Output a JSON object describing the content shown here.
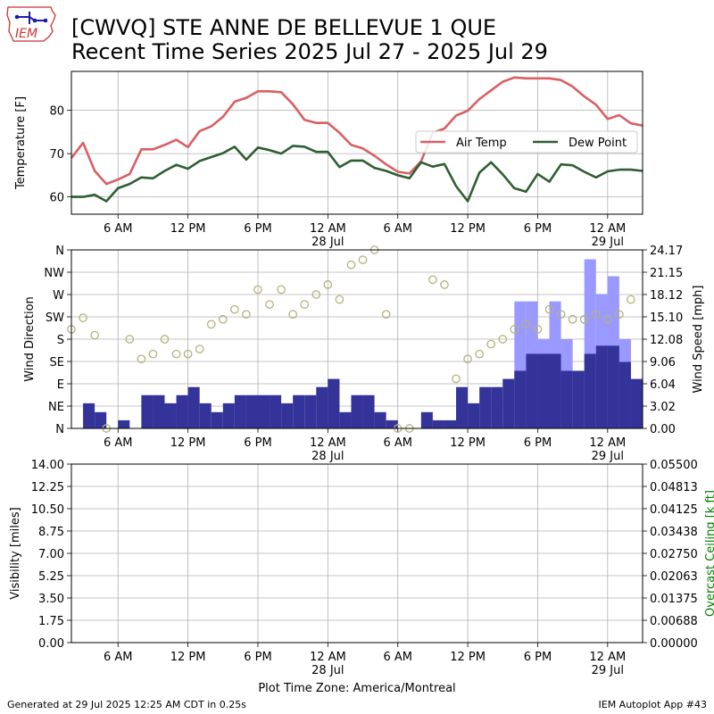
{
  "header": {
    "title_line1": "[CWVQ] STE ANNE DE BELLEVUE 1  QUE",
    "title_line2": "Recent Time Series 2025 Jul 27 - 2025 Jul 29",
    "logo_text": "IEM"
  },
  "footer": {
    "generated": "Generated at 29 Jul 2025 12:25 AM CDT in 0.25s",
    "app": "IEM Autoplot App #43",
    "timezone_label": "Plot Time Zone: America/Montreal"
  },
  "colors": {
    "air_temp": "#d95f63",
    "dew_point": "#2e5e33",
    "wind_speed": "#333399",
    "wind_gust": "#9999ff",
    "wind_dir_marker": "#b5b27a",
    "ceiling_label": "#008000"
  },
  "chart_data": [
    {
      "type": "line",
      "panel": "temperature",
      "ylabel": "Temperature [F]",
      "ylim": [
        56,
        89
      ],
      "yticks": [
        60,
        70,
        80
      ],
      "xlim_hours": [
        0,
        49
      ],
      "xticks": [
        4,
        10,
        16,
        22,
        28,
        34,
        40,
        46
      ],
      "xtick_labels": [
        "6 AM",
        "12 PM",
        "6 PM",
        "12 AM\n28 Jul",
        "6 AM",
        "12 PM",
        "6 PM",
        "12 AM\n29 Jul"
      ],
      "grid": true,
      "legend_position": "upper-right",
      "series": [
        {
          "name": "Air Temp",
          "x": [
            0,
            1,
            2,
            3,
            4,
            5,
            6,
            7,
            8,
            9,
            10,
            11,
            12,
            13,
            14,
            15,
            16,
            17,
            18,
            19,
            20,
            21,
            22,
            23,
            24,
            25,
            26,
            27,
            28,
            29,
            30,
            31,
            32,
            33,
            34,
            35,
            36,
            37,
            38,
            39,
            40,
            41,
            42,
            43,
            44,
            45,
            46,
            47,
            48,
            49
          ],
          "values": [
            69,
            72.5,
            66,
            63,
            64,
            65.3,
            71,
            71,
            72,
            73.2,
            71.5,
            75.2,
            76.3,
            78.5,
            82,
            82.9,
            84.4,
            84.4,
            84.2,
            81.4,
            77.8,
            77.1,
            77.1,
            74.8,
            72,
            71.2,
            69.5,
            67.5,
            65.8,
            65.4,
            68.2,
            74.8,
            75.8,
            78.8,
            79.9,
            82.6,
            84.6,
            86.6,
            87.6,
            87.4,
            87.4,
            87.4,
            87,
            85.5,
            83.2,
            81.3,
            78,
            78.9,
            77,
            76.5
          ]
        },
        {
          "name": "Dew Point",
          "x": [
            0,
            1,
            2,
            3,
            4,
            5,
            6,
            7,
            8,
            9,
            10,
            11,
            12,
            13,
            14,
            15,
            16,
            17,
            18,
            19,
            20,
            21,
            22,
            23,
            24,
            25,
            26,
            27,
            28,
            29,
            30,
            31,
            32,
            33,
            34,
            35,
            36,
            37,
            38,
            39,
            40,
            41,
            42,
            43,
            44,
            45,
            46,
            47,
            48,
            49
          ],
          "values": [
            60,
            60,
            60.5,
            59,
            62,
            63,
            64.5,
            64.3,
            66,
            67.4,
            66.5,
            68.3,
            69.2,
            70.1,
            71.6,
            68.6,
            71.4,
            70.8,
            70,
            71.8,
            71.6,
            70.4,
            70.4,
            66.9,
            68.4,
            68.4,
            66.7,
            66,
            65,
            64.3,
            68,
            67,
            67.6,
            62.5,
            59,
            65.6,
            68,
            65.2,
            62,
            61.2,
            65.3,
            63.5,
            67.5,
            67.3,
            65.8,
            64.5,
            65.9,
            66.3,
            66.3,
            66
          ]
        }
      ]
    },
    {
      "type": "bar",
      "panel": "wind",
      "ylabel": "Wind Direction",
      "ylabel_right": "Wind Speed [mph]",
      "direction_ticks": [
        "N",
        "NE",
        "E",
        "SE",
        "S",
        "SW",
        "W",
        "NW",
        "N"
      ],
      "speed_ticks": [
        "0.00",
        "3.02",
        "6.04",
        "9.06",
        "12.08",
        "15.10",
        "18.12",
        "21.15",
        "24.17"
      ],
      "speed_ylim": [
        0,
        24.17
      ],
      "direction_ylim": [
        0,
        360
      ],
      "xlim_hours": [
        0,
        49
      ],
      "xticks": [
        4,
        10,
        16,
        22,
        28,
        34,
        40,
        46
      ],
      "xtick_labels": [
        "6 AM",
        "12 PM",
        "6 PM",
        "12 AM\n28 Jul",
        "6 AM",
        "12 PM",
        "6 PM",
        "12 AM\n29 Jul"
      ],
      "grid": true,
      "series": [
        {
          "name": "Wind Speed",
          "x": [
            0,
            1,
            2,
            3,
            4,
            5,
            6,
            7,
            8,
            9,
            10,
            11,
            12,
            13,
            14,
            15,
            16,
            17,
            18,
            19,
            20,
            21,
            22,
            23,
            24,
            25,
            26,
            27,
            28,
            29,
            30,
            31,
            32,
            33,
            34,
            35,
            36,
            37,
            38,
            39,
            40,
            41,
            42,
            43,
            44,
            45,
            46,
            47,
            48
          ],
          "values": [
            0,
            3.4,
            2.2,
            0,
            1.1,
            0,
            4.5,
            4.5,
            3.4,
            4.5,
            5.6,
            3.4,
            2.2,
            3.4,
            4.5,
            4.5,
            4.5,
            4.5,
            3.4,
            4.5,
            4.5,
            5.6,
            6.7,
            2.2,
            4.5,
            4.5,
            2.2,
            1.1,
            0,
            0,
            2.2,
            1.1,
            1.1,
            5.6,
            3.4,
            5.6,
            5.6,
            6.7,
            7.8,
            10.1,
            10.1,
            10.1,
            7.8,
            7.8,
            10.1,
            11.2,
            11.2,
            9,
            6.7
          ]
        },
        {
          "name": "Wind Gust",
          "x": [
            38,
            39,
            40,
            41,
            42,
            44,
            45,
            46,
            47
          ],
          "values": [
            17.2,
            17.2,
            12.1,
            17.2,
            12.1,
            22.9,
            18.2,
            20.6,
            12.1
          ]
        },
        {
          "name": "Wind Direction",
          "x": [
            0,
            1,
            2,
            3,
            5,
            6,
            7,
            8,
            9,
            10,
            11,
            12,
            13,
            14,
            15,
            16,
            17,
            18,
            19,
            20,
            21,
            22,
            23,
            24,
            25,
            26,
            27,
            28,
            29,
            31,
            32,
            33,
            34,
            35,
            36,
            37,
            38,
            39,
            40,
            41,
            42,
            43,
            44,
            45,
            46,
            47,
            48
          ],
          "values": [
            200,
            223,
            188,
            0,
            180,
            140,
            150,
            180,
            150,
            150,
            160,
            210,
            220,
            240,
            230,
            280,
            250,
            280,
            230,
            250,
            270,
            290,
            260,
            330,
            340,
            360,
            230,
            0,
            0,
            300,
            290,
            100,
            140,
            150,
            170,
            180,
            200,
            210,
            200,
            240,
            230,
            220,
            220,
            230,
            220,
            230,
            260
          ]
        }
      ]
    },
    {
      "type": "line",
      "panel": "visibility",
      "ylabel": "Visibility [miles]",
      "ylabel_right": "Overcast Ceiling [k ft]",
      "vis_ticks": [
        "0.00",
        "1.75",
        "3.50",
        "5.25",
        "7.00",
        "8.75",
        "10.50",
        "12.25",
        "14.00"
      ],
      "ceiling_ticks": [
        "0.00000",
        "0.00688",
        "0.01375",
        "0.02063",
        "0.02750",
        "0.03438",
        "0.04125",
        "0.04813",
        "0.05500"
      ],
      "vis_ylim": [
        0,
        14
      ],
      "ceiling_ylim": [
        0,
        0.055
      ],
      "xlim_hours": [
        0,
        49
      ],
      "xticks": [
        4,
        10,
        16,
        22,
        28,
        34,
        40,
        46
      ],
      "xtick_labels": [
        "6 AM",
        "12 PM",
        "6 PM",
        "12 AM\n28 Jul",
        "6 AM",
        "12 PM",
        "6 PM",
        "12 AM\n29 Jul"
      ],
      "grid": true,
      "series": []
    }
  ]
}
